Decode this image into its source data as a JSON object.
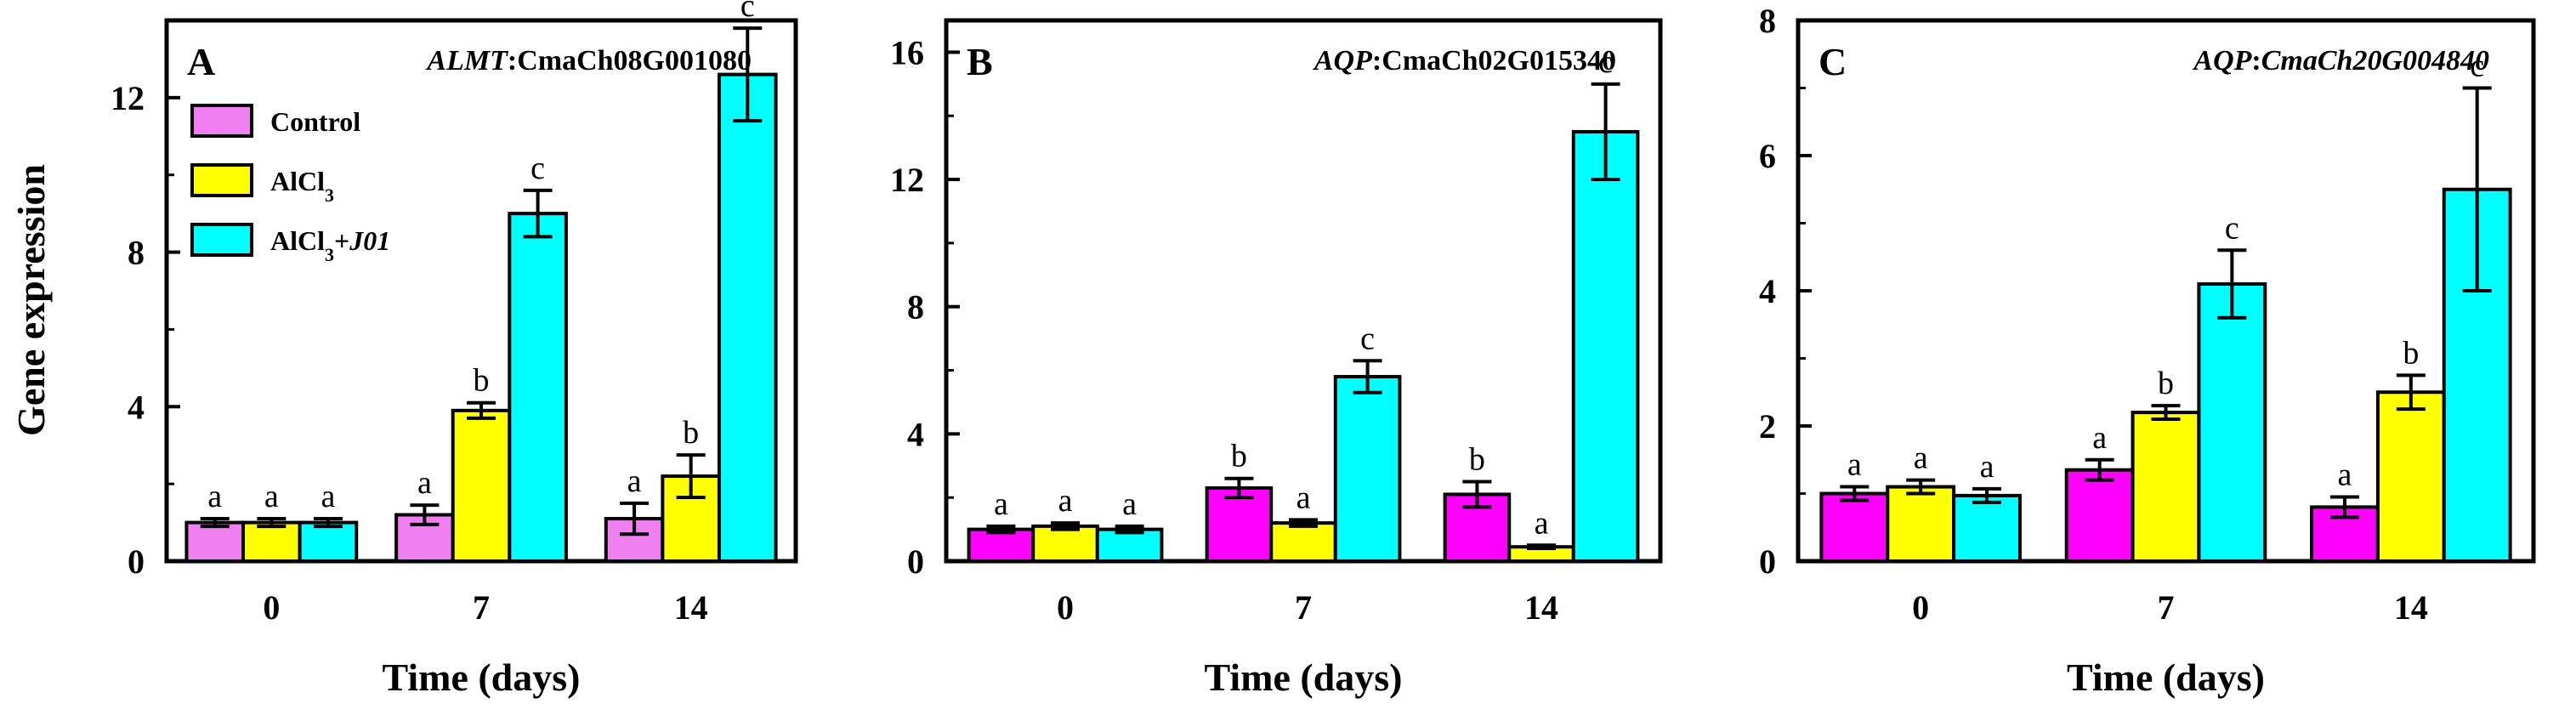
{
  "y_axis_title": "Gene expression",
  "x_axis_title": "Time (days)",
  "legend": [
    {
      "label": "Control",
      "color": "#f080f0"
    },
    {
      "label": "AlCl",
      "sub": "3",
      "suffix": "",
      "color": "#ffff00"
    },
    {
      "label": "AlCl",
      "sub": "3",
      "suffix": "+",
      "italic_suffix": "J01",
      "color": "#00ffff"
    }
  ],
  "chart_data": [
    {
      "type": "bar",
      "panel": "A",
      "gene_italic": "ALMT",
      "gene_sep": ":",
      "gene_id": "CmaCh08G001080",
      "gene_id_italic": false,
      "categories": [
        "0",
        "7",
        "14"
      ],
      "ylim": [
        0,
        14
      ],
      "yticks": [
        0,
        4,
        8,
        12
      ],
      "xlabel": "Time (days)",
      "ylabel": "Gene expression",
      "series": [
        {
          "name": "Control",
          "color": "#f080f0",
          "values": [
            1.0,
            1.2,
            1.1
          ],
          "errors": [
            0.1,
            0.25,
            0.4
          ],
          "letters": [
            "a",
            "a",
            "a"
          ]
        },
        {
          "name": "AlCl3",
          "color": "#ffff00",
          "values": [
            1.0,
            3.9,
            2.2
          ],
          "errors": [
            0.1,
            0.2,
            0.55
          ],
          "letters": [
            "a",
            "b",
            "b"
          ]
        },
        {
          "name": "AlCl3+J01",
          "color": "#00ffff",
          "values": [
            1.0,
            9.0,
            12.6
          ],
          "errors": [
            0.1,
            0.6,
            1.2
          ],
          "letters": [
            "a",
            "c",
            "c"
          ]
        }
      ]
    },
    {
      "type": "bar",
      "panel": "B",
      "gene_italic": "AQP",
      "gene_sep": ":",
      "gene_id": "CmaCh02G015340",
      "gene_id_italic": false,
      "categories": [
        "0",
        "7",
        "14"
      ],
      "ylim": [
        0,
        17
      ],
      "yticks": [
        0,
        4,
        8,
        12,
        16
      ],
      "xlabel": "Time (days)",
      "ylabel": "",
      "series": [
        {
          "name": "Control",
          "color": "#ff00ff",
          "values": [
            1.0,
            2.3,
            2.1
          ],
          "errors": [
            0.1,
            0.3,
            0.4
          ],
          "letters": [
            "a",
            "b",
            "b"
          ]
        },
        {
          "name": "AlCl3",
          "color": "#ffff00",
          "values": [
            1.1,
            1.2,
            0.45
          ],
          "errors": [
            0.1,
            0.1,
            0.05
          ],
          "letters": [
            "a",
            "a",
            "a"
          ]
        },
        {
          "name": "AlCl3+J01",
          "color": "#00ffff",
          "values": [
            1.0,
            5.8,
            13.5
          ],
          "errors": [
            0.1,
            0.5,
            1.5
          ],
          "letters": [
            "a",
            "c",
            "c"
          ]
        }
      ]
    },
    {
      "type": "bar",
      "panel": "C",
      "gene_italic": "AQP",
      "gene_sep": ":",
      "gene_id": "CmaCh20G004840",
      "gene_id_italic": true,
      "categories": [
        "0",
        "7",
        "14"
      ],
      "ylim": [
        0,
        8
      ],
      "yticks": [
        0,
        2,
        4,
        6,
        8
      ],
      "xlabel": "Time (days)",
      "ylabel": "",
      "series": [
        {
          "name": "Control",
          "color": "#ff00ff",
          "values": [
            1.0,
            1.35,
            0.8
          ],
          "errors": [
            0.1,
            0.15,
            0.15
          ],
          "letters": [
            "a",
            "a",
            "a"
          ]
        },
        {
          "name": "AlCl3",
          "color": "#ffff00",
          "values": [
            1.1,
            2.2,
            2.5
          ],
          "errors": [
            0.1,
            0.1,
            0.25
          ],
          "letters": [
            "a",
            "b",
            "b"
          ]
        },
        {
          "name": "AlCl3+J01",
          "color": "#00ffff",
          "values": [
            0.97,
            4.1,
            5.5
          ],
          "errors": [
            0.1,
            0.5,
            1.5
          ],
          "letters": [
            "a",
            "c",
            "c"
          ]
        }
      ]
    }
  ]
}
